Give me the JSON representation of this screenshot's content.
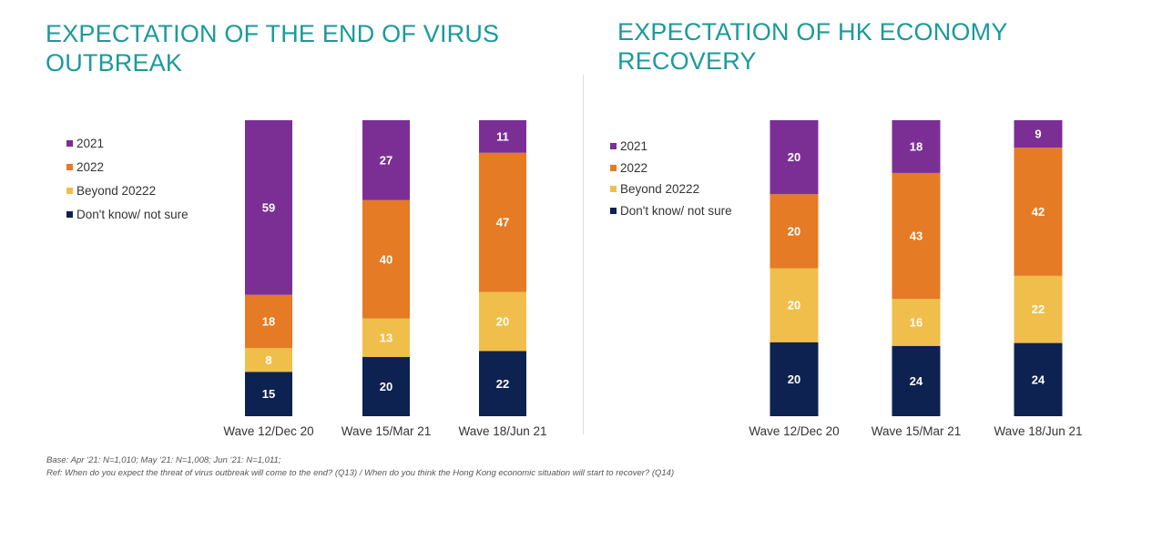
{
  "series_colors": {
    "2021": "#7b2f95",
    "2022": "#e57b25",
    "Beyond 20222": "#f0be4b",
    "Don't know/ not sure": "#0d2250"
  },
  "legend": {
    "items": [
      {
        "label": "2021",
        "color": "#7b2f95"
      },
      {
        "label": "2022",
        "color": "#e57b25"
      },
      {
        "label": "Beyond 20222",
        "color": "#f0be4b"
      },
      {
        "label": "Don't know/ not sure",
        "color": "#0d2250"
      }
    ]
  },
  "chart_data": [
    {
      "type": "bar",
      "stacked": true,
      "title": "EXPECTATION OF THE END OF VIRUS OUTBREAK",
      "categories": [
        "Wave 12/Dec 20",
        "Wave 15/Mar 21",
        "Wave 18/Jun 21"
      ],
      "series": [
        {
          "name": "Don't know/ not sure",
          "values": [
            15,
            20,
            22
          ]
        },
        {
          "name": "Beyond 20222",
          "values": [
            8,
            13,
            20
          ]
        },
        {
          "name": "2022",
          "values": [
            18,
            40,
            47
          ]
        },
        {
          "name": "2021",
          "values": [
            59,
            27,
            11
          ]
        }
      ],
      "ylim": [
        0,
        100
      ],
      "legend_position": "left",
      "xlabel": "",
      "ylabel": ""
    },
    {
      "type": "bar",
      "stacked": true,
      "title": "EXPECTATION OF HK ECONOMY RECOVERY",
      "categories": [
        "Wave 12/Dec 20",
        "Wave 15/Mar 21",
        "Wave 18/Jun 21"
      ],
      "series": [
        {
          "name": "Don't know/ not sure",
          "values": [
            20,
            24,
            24
          ]
        },
        {
          "name": "Beyond 20222",
          "values": [
            20,
            16,
            22
          ]
        },
        {
          "name": "2022",
          "values": [
            20,
            43,
            42
          ]
        },
        {
          "name": "2021",
          "values": [
            20,
            18,
            9
          ]
        }
      ],
      "ylim": [
        0,
        100
      ],
      "legend_position": "left",
      "xlabel": "",
      "ylabel": ""
    }
  ],
  "footnotes": {
    "base": "Base: Apr ‘21: N=1,010; May ‘21: N=1,008; Jun ‘21: N=1,011;",
    "ref": "Ref:  When do you expect the threat of virus outbreak will come to the end? (Q13) / When do you think the Hong Kong economic situation will start to recover? (Q14)"
  }
}
